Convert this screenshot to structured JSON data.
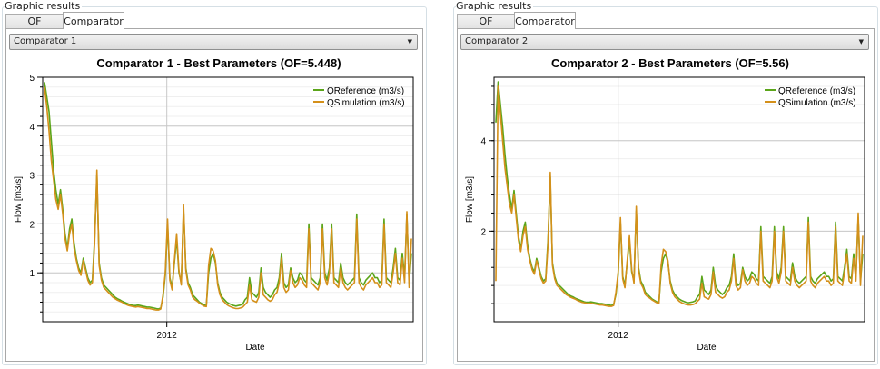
{
  "panels": [
    {
      "group_title": "Graphic results",
      "tabs": [
        {
          "label": "OF Progress",
          "active": false
        },
        {
          "label": "Comparator",
          "active": true
        }
      ],
      "selector": {
        "value": "Comparator 1"
      }
    },
    {
      "group_title": "Graphic results",
      "tabs": [
        {
          "label": "OF Progress",
          "active": false
        },
        {
          "label": "Comparator",
          "active": true
        }
      ],
      "selector": {
        "value": "Comparator 2"
      }
    }
  ],
  "colors": {
    "reference": "#5ba51a",
    "simulation": "#d4901a",
    "grid": "#d8d8d8"
  },
  "chart_data": [
    {
      "type": "line",
      "title": "Comparator 1 - Best Parameters (OF=5.448)",
      "xlabel": "Date",
      "ylabel": "Flow [m3/s]",
      "x_tick_labels": [
        "2012"
      ],
      "yticks": [
        1,
        2,
        3,
        4,
        5
      ],
      "ylim": [
        0,
        5
      ],
      "legend_position": "top-right",
      "series": [
        {
          "name": "QReference (m3/s)",
          "values": [
            4.9,
            4.6,
            4.3,
            3.7,
            3.1,
            2.7,
            2.4,
            2.7,
            2.3,
            1.8,
            1.5,
            1.9,
            2.1,
            1.6,
            1.3,
            1.1,
            1.0,
            1.3,
            1.1,
            0.9,
            0.8,
            0.85,
            1.7,
            3.0,
            1.2,
            0.9,
            0.75,
            0.7,
            0.65,
            0.6,
            0.55,
            0.5,
            0.47,
            0.45,
            0.42,
            0.4,
            0.38,
            0.36,
            0.34,
            0.33,
            0.33,
            0.34,
            0.33,
            0.32,
            0.31,
            0.3,
            0.3,
            0.29,
            0.28,
            0.27,
            0.26,
            0.28,
            0.5,
            0.95,
            2.0,
            0.9,
            0.7,
            1.2,
            1.7,
            1.0,
            0.8,
            2.3,
            1.1,
            0.8,
            0.7,
            0.55,
            0.5,
            0.45,
            0.4,
            0.37,
            0.34,
            0.33,
            1.0,
            1.3,
            1.4,
            1.2,
            0.8,
            0.6,
            0.5,
            0.45,
            0.4,
            0.37,
            0.35,
            0.33,
            0.32,
            0.33,
            0.34,
            0.36,
            0.45,
            0.5,
            0.9,
            0.6,
            0.55,
            0.5,
            0.6,
            1.1,
            0.7,
            0.6,
            0.55,
            0.5,
            0.55,
            0.65,
            0.7,
            0.9,
            1.4,
            0.8,
            0.7,
            0.75,
            1.1,
            0.9,
            0.8,
            0.85,
            1.0,
            0.95,
            0.85,
            0.8,
            2.0,
            0.9,
            0.85,
            0.8,
            0.75,
            0.9,
            2.0,
            1.0,
            0.85,
            1.1,
            2.0,
            0.9,
            0.85,
            0.8,
            1.2,
            0.9,
            0.8,
            0.75,
            0.8,
            0.85,
            0.9,
            2.2,
            0.9,
            0.8,
            0.75,
            0.85,
            0.9,
            0.95,
            1.0,
            0.9,
            0.9,
            0.8,
            0.85,
            2.1,
            0.9,
            0.85,
            0.8,
            1.1,
            1.5,
            0.9,
            0.85,
            1.4,
            0.9,
            2.2,
            0.8,
            1.4
          ]
        },
        {
          "name": "QSimulation (m3/s)",
          "values": [
            4.8,
            4.4,
            3.9,
            3.3,
            2.9,
            2.5,
            2.3,
            2.6,
            2.2,
            1.7,
            1.45,
            1.8,
            2.0,
            1.5,
            1.25,
            1.05,
            0.95,
            1.25,
            1.05,
            0.85,
            0.75,
            0.8,
            1.6,
            3.1,
            1.15,
            0.85,
            0.7,
            0.65,
            0.6,
            0.55,
            0.5,
            0.47,
            0.44,
            0.42,
            0.4,
            0.37,
            0.35,
            0.33,
            0.32,
            0.31,
            0.3,
            0.31,
            0.3,
            0.29,
            0.28,
            0.27,
            0.27,
            0.26,
            0.25,
            0.24,
            0.24,
            0.26,
            0.55,
            1.0,
            2.1,
            0.85,
            0.65,
            1.25,
            1.8,
            1.05,
            0.75,
            2.4,
            1.05,
            0.75,
            0.65,
            0.5,
            0.45,
            0.42,
            0.38,
            0.35,
            0.32,
            0.31,
            1.15,
            1.5,
            1.45,
            1.25,
            0.75,
            0.55,
            0.45,
            0.4,
            0.35,
            0.32,
            0.3,
            0.28,
            0.27,
            0.27,
            0.28,
            0.3,
            0.35,
            0.4,
            0.75,
            0.45,
            0.42,
            0.4,
            0.5,
            1.0,
            0.55,
            0.5,
            0.45,
            0.42,
            0.45,
            0.55,
            0.6,
            0.8,
            1.3,
            0.7,
            0.6,
            0.65,
            1.05,
            0.8,
            0.7,
            0.75,
            0.9,
            0.85,
            0.75,
            0.7,
            1.9,
            0.8,
            0.75,
            0.7,
            0.65,
            0.8,
            1.9,
            0.9,
            0.75,
            1.0,
            1.9,
            0.8,
            0.75,
            0.7,
            1.1,
            0.8,
            0.7,
            0.65,
            0.7,
            0.75,
            0.8,
            2.1,
            0.8,
            0.7,
            0.65,
            0.75,
            0.8,
            0.85,
            0.9,
            0.8,
            0.8,
            0.7,
            0.75,
            2.0,
            0.8,
            0.75,
            0.7,
            1.0,
            1.4,
            0.8,
            0.75,
            1.3,
            0.8,
            2.25,
            0.7,
            1.7
          ]
        }
      ]
    },
    {
      "type": "line",
      "title": "Comparator 2 - Best Parameters (OF=5.56)",
      "xlabel": "Date",
      "ylabel": "Flow [m3/s]",
      "x_tick_labels": [
        "2012"
      ],
      "yticks": [
        2,
        4
      ],
      "ylim": [
        0,
        5.4
      ],
      "legend_position": "top-right",
      "series": [
        {
          "name": "QReference (m3/s)",
          "values": [
            4.4,
            5.3,
            4.8,
            4.3,
            3.7,
            3.2,
            2.8,
            2.5,
            2.9,
            2.4,
            1.9,
            1.6,
            2.0,
            2.2,
            1.7,
            1.4,
            1.2,
            1.1,
            1.4,
            1.2,
            1.0,
            0.9,
            0.95,
            1.8,
            3.2,
            1.3,
            1.0,
            0.85,
            0.8,
            0.75,
            0.7,
            0.65,
            0.6,
            0.57,
            0.55,
            0.52,
            0.5,
            0.48,
            0.46,
            0.44,
            0.43,
            0.43,
            0.44,
            0.43,
            0.42,
            0.41,
            0.4,
            0.4,
            0.39,
            0.38,
            0.37,
            0.36,
            0.38,
            0.6,
            1.05,
            2.2,
            1.0,
            0.8,
            1.3,
            1.8,
            1.1,
            0.9,
            2.45,
            1.2,
            0.9,
            0.8,
            0.65,
            0.6,
            0.55,
            0.5,
            0.47,
            0.44,
            0.43,
            1.1,
            1.4,
            1.5,
            1.3,
            0.9,
            0.7,
            0.6,
            0.55,
            0.5,
            0.47,
            0.45,
            0.43,
            0.42,
            0.43,
            0.44,
            0.46,
            0.55,
            0.6,
            1.0,
            0.7,
            0.65,
            0.6,
            0.7,
            1.2,
            0.8,
            0.7,
            0.65,
            0.6,
            0.65,
            0.75,
            0.8,
            1.0,
            1.5,
            0.9,
            0.8,
            0.85,
            1.2,
            1.0,
            0.9,
            0.95,
            1.1,
            1.05,
            0.95,
            0.9,
            2.1,
            1.0,
            0.95,
            0.9,
            0.85,
            1.0,
            2.1,
            1.1,
            0.95,
            1.2,
            2.1,
            1.0,
            0.95,
            0.9,
            1.3,
            1.0,
            0.9,
            0.85,
            0.9,
            0.95,
            1.0,
            2.3,
            1.0,
            0.9,
            0.85,
            0.95,
            1.0,
            1.05,
            1.1,
            1.0,
            1.0,
            0.9,
            0.95,
            2.2,
            1.0,
            0.95,
            0.9,
            1.2,
            1.6,
            1.0,
            0.95,
            1.5,
            1.0,
            2.3,
            0.9,
            1.5
          ]
        },
        {
          "name": "QSimulation (m3/s)",
          "values": [
            0.9,
            5.2,
            4.6,
            4.0,
            3.4,
            3.0,
            2.6,
            2.4,
            2.8,
            2.3,
            1.8,
            1.55,
            1.9,
            2.1,
            1.6,
            1.35,
            1.15,
            1.05,
            1.35,
            1.15,
            0.95,
            0.85,
            0.9,
            1.7,
            3.3,
            1.25,
            0.95,
            0.8,
            0.75,
            0.7,
            0.65,
            0.6,
            0.57,
            0.54,
            0.52,
            0.5,
            0.47,
            0.45,
            0.43,
            0.42,
            0.41,
            0.4,
            0.41,
            0.4,
            0.39,
            0.38,
            0.37,
            0.37,
            0.36,
            0.35,
            0.34,
            0.34,
            0.36,
            0.65,
            1.1,
            2.3,
            0.95,
            0.75,
            1.35,
            1.9,
            1.15,
            0.85,
            2.55,
            1.15,
            0.85,
            0.75,
            0.6,
            0.55,
            0.52,
            0.48,
            0.45,
            0.42,
            0.41,
            1.25,
            1.6,
            1.55,
            1.35,
            0.85,
            0.65,
            0.55,
            0.5,
            0.45,
            0.42,
            0.4,
            0.38,
            0.37,
            0.37,
            0.38,
            0.4,
            0.45,
            0.5,
            0.85,
            0.55,
            0.52,
            0.5,
            0.6,
            1.1,
            0.65,
            0.6,
            0.55,
            0.52,
            0.55,
            0.65,
            0.7,
            0.9,
            1.4,
            0.8,
            0.7,
            0.75,
            1.15,
            0.9,
            0.8,
            0.85,
            1.0,
            0.95,
            0.85,
            0.8,
            2.0,
            0.9,
            0.85,
            0.8,
            0.75,
            0.9,
            2.0,
            1.0,
            0.85,
            1.1,
            2.0,
            0.9,
            0.85,
            0.8,
            1.2,
            0.9,
            0.8,
            0.75,
            0.8,
            0.85,
            0.9,
            2.2,
            0.9,
            0.8,
            0.75,
            0.85,
            0.9,
            0.95,
            1.0,
            0.9,
            0.9,
            0.8,
            0.85,
            2.1,
            0.9,
            0.85,
            0.8,
            1.1,
            1.5,
            0.9,
            0.85,
            1.4,
            0.9,
            2.4,
            0.8,
            1.9
          ]
        }
      ]
    }
  ]
}
